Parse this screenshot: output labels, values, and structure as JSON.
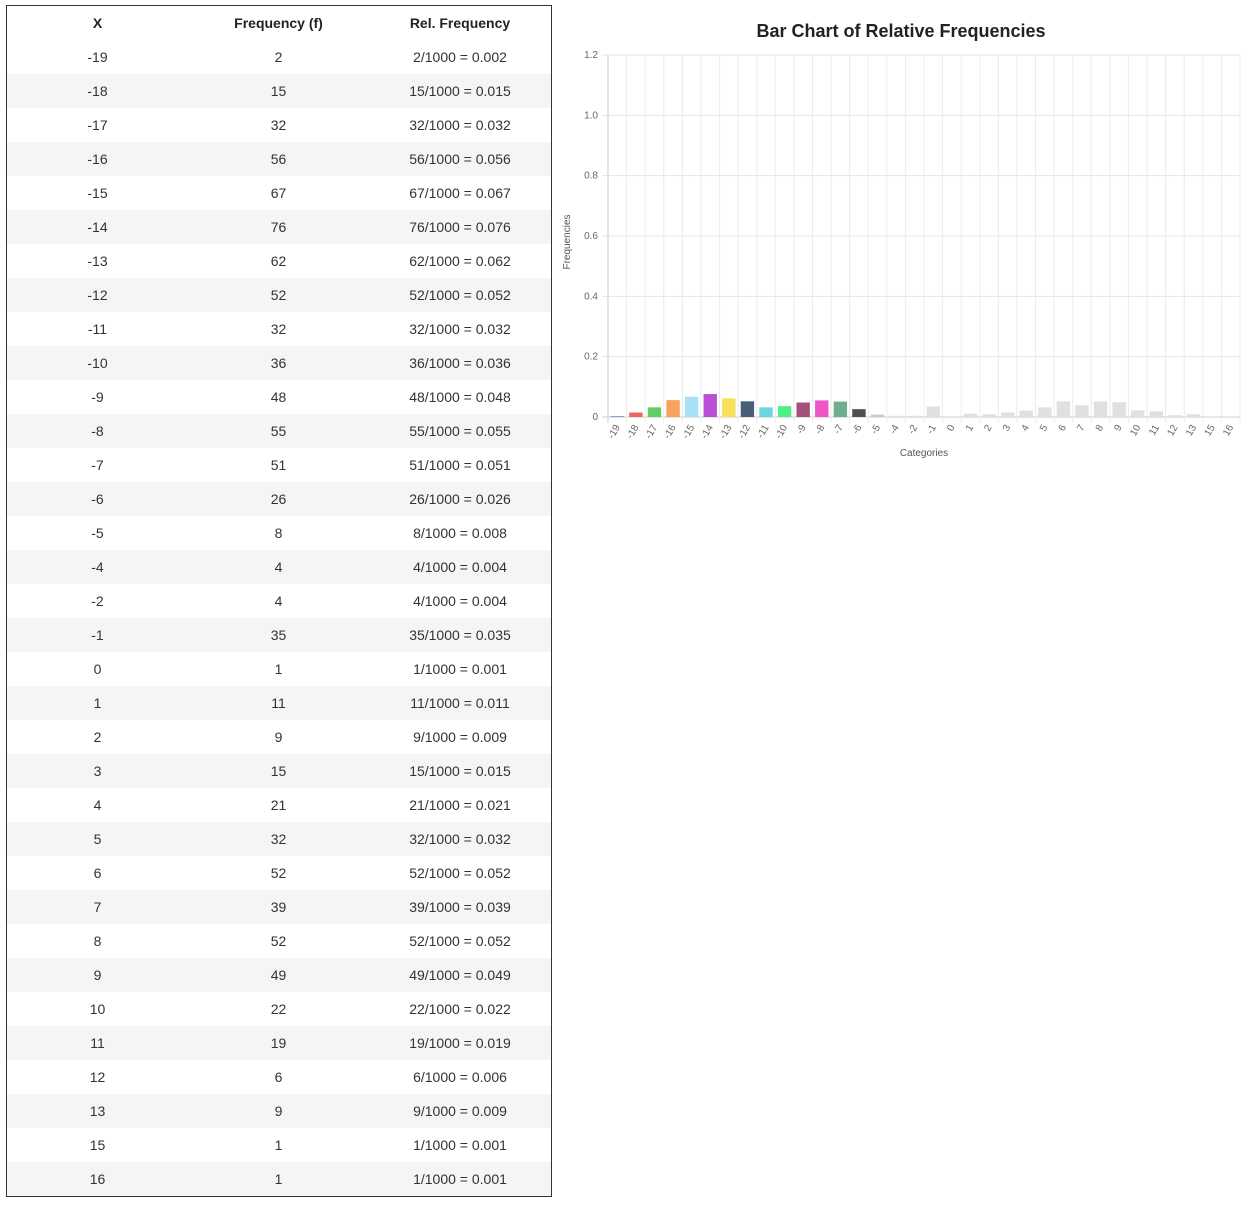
{
  "table": {
    "headers": [
      "X",
      "Frequency (f)",
      "Rel. Frequency"
    ],
    "rows": [
      [
        "-19",
        "2",
        "2/1000 = 0.002"
      ],
      [
        "-18",
        "15",
        "15/1000 = 0.015"
      ],
      [
        "-17",
        "32",
        "32/1000 = 0.032"
      ],
      [
        "-16",
        "56",
        "56/1000 = 0.056"
      ],
      [
        "-15",
        "67",
        "67/1000 = 0.067"
      ],
      [
        "-14",
        "76",
        "76/1000 = 0.076"
      ],
      [
        "-13",
        "62",
        "62/1000 = 0.062"
      ],
      [
        "-12",
        "52",
        "52/1000 = 0.052"
      ],
      [
        "-11",
        "32",
        "32/1000 = 0.032"
      ],
      [
        "-10",
        "36",
        "36/1000 = 0.036"
      ],
      [
        "-9",
        "48",
        "48/1000 = 0.048"
      ],
      [
        "-8",
        "55",
        "55/1000 = 0.055"
      ],
      [
        "-7",
        "51",
        "51/1000 = 0.051"
      ],
      [
        "-6",
        "26",
        "26/1000 = 0.026"
      ],
      [
        "-5",
        "8",
        "8/1000 = 0.008"
      ],
      [
        "-4",
        "4",
        "4/1000 = 0.004"
      ],
      [
        "-2",
        "4",
        "4/1000 = 0.004"
      ],
      [
        "-1",
        "35",
        "35/1000 = 0.035"
      ],
      [
        "0",
        "1",
        "1/1000 = 0.001"
      ],
      [
        "1",
        "11",
        "11/1000 = 0.011"
      ],
      [
        "2",
        "9",
        "9/1000 = 0.009"
      ],
      [
        "3",
        "15",
        "15/1000 = 0.015"
      ],
      [
        "4",
        "21",
        "21/1000 = 0.021"
      ],
      [
        "5",
        "32",
        "32/1000 = 0.032"
      ],
      [
        "6",
        "52",
        "52/1000 = 0.052"
      ],
      [
        "7",
        "39",
        "39/1000 = 0.039"
      ],
      [
        "8",
        "52",
        "52/1000 = 0.052"
      ],
      [
        "9",
        "49",
        "49/1000 = 0.049"
      ],
      [
        "10",
        "22",
        "22/1000 = 0.022"
      ],
      [
        "11",
        "19",
        "19/1000 = 0.019"
      ],
      [
        "12",
        "6",
        "6/1000 = 0.006"
      ],
      [
        "13",
        "9",
        "9/1000 = 0.009"
      ],
      [
        "15",
        "1",
        "1/1000 = 0.001"
      ],
      [
        "16",
        "1",
        "1/1000 = 0.001"
      ]
    ]
  },
  "chart_data": {
    "type": "bar",
    "title": "Bar Chart of Relative Frequencies",
    "xlabel": "Categories",
    "ylabel": "Frequencies",
    "ylim": [
      0,
      1.2
    ],
    "y_ticks": [
      "0",
      "0.2",
      "0.4",
      "0.6",
      "0.8",
      "1.0",
      "1.2"
    ],
    "grid": true,
    "legend": "none",
    "categories": [
      "-19",
      "-18",
      "-17",
      "-16",
      "-15",
      "-14",
      "-13",
      "-12",
      "-11",
      "-10",
      "-9",
      "-8",
      "-7",
      "-6",
      "-5",
      "-4",
      "-2",
      "-1",
      "0",
      "1",
      "2",
      "3",
      "4",
      "5",
      "6",
      "7",
      "8",
      "9",
      "10",
      "11",
      "12",
      "13",
      "15",
      "16"
    ],
    "values": [
      0.002,
      0.015,
      0.032,
      0.056,
      0.067,
      0.076,
      0.062,
      0.052,
      0.032,
      0.036,
      0.048,
      0.055,
      0.051,
      0.026,
      0.008,
      0.004,
      0.004,
      0.035,
      0.001,
      0.011,
      0.009,
      0.015,
      0.021,
      0.032,
      0.052,
      0.039,
      0.052,
      0.049,
      0.022,
      0.019,
      0.006,
      0.009,
      0.001,
      0.001
    ],
    "bar_colors": [
      "#3366cc",
      "#e8675f",
      "#5fcf5f",
      "#f7a35c",
      "#a8e0fa",
      "#b84fd6",
      "#f9e05a",
      "#4a5e78",
      "#6ad6dd",
      "#4ef08a",
      "#a3507a",
      "#ee55c9",
      "#6fad8f",
      "#4f4f4f",
      "#cccccc",
      "#e0e0e0",
      "#e0e0e0",
      "#e0e0e0",
      "#e0e0e0",
      "#e0e0e0",
      "#e0e0e0",
      "#e0e0e0",
      "#e0e0e0",
      "#e0e0e0",
      "#e0e0e0",
      "#e0e0e0",
      "#e0e0e0",
      "#e0e0e0",
      "#e0e0e0",
      "#e0e0e0",
      "#e0e0e0",
      "#e0e0e0",
      "#e0e0e0",
      "#e0e0e0"
    ]
  }
}
